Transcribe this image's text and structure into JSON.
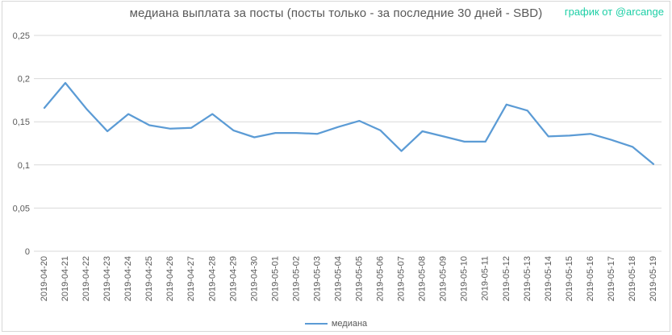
{
  "header": {
    "title": "медиана выплата за посты  (посты только - за последние 30 дней - SBD)",
    "attribution": "график от @arcange"
  },
  "legend": {
    "label": "медиана"
  },
  "colors": {
    "line": "#5b9bd5",
    "grid": "#d9d9d9",
    "text": "#595959",
    "attribution": "#1dcfa6",
    "border": "#d7d7d7"
  },
  "chart_data": {
    "type": "line",
    "title": "медиана выплата за посты  (посты только - за последние 30 дней - SBD)",
    "xlabel": "",
    "ylabel": "",
    "ylim": [
      0,
      0.25
    ],
    "y_ticks": [
      0,
      0.05,
      0.1,
      0.15,
      0.2,
      0.25
    ],
    "y_tick_labels": [
      "0",
      "0,05",
      "0,1",
      "0,15",
      "0,2",
      "0,25"
    ],
    "grid": "horizontal",
    "legend_position": "bottom",
    "x": [
      "2019-04-20",
      "2019-04-21",
      "2019-04-22",
      "2019-04-23",
      "2019-04-24",
      "2019-04-25",
      "2019-04-26",
      "2019-04-27",
      "2019-04-28",
      "2019-04-29",
      "2019-04-30",
      "2019-05-01",
      "2019-05-02",
      "2019-05-03",
      "2019-05-04",
      "2019-05-05",
      "2019-05-06",
      "2019-05-07",
      "2019-05-08",
      "2019-05-09",
      "2019-05-10",
      "2019-05-11",
      "2019-05-12",
      "2019-05-13",
      "2019-05-14",
      "2019-05-15",
      "2019-05-16",
      "2019-05-17",
      "2019-05-18",
      "2019-05-19"
    ],
    "series": [
      {
        "name": "медиана",
        "values": [
          0.166,
          0.195,
          0.165,
          0.139,
          0.159,
          0.146,
          0.142,
          0.143,
          0.159,
          0.14,
          0.132,
          0.137,
          0.137,
          0.136,
          0.144,
          0.151,
          0.14,
          0.116,
          0.139,
          0.133,
          0.127,
          0.127,
          0.17,
          0.163,
          0.133,
          0.134,
          0.136,
          0.129,
          0.121,
          0.101
        ]
      }
    ]
  }
}
